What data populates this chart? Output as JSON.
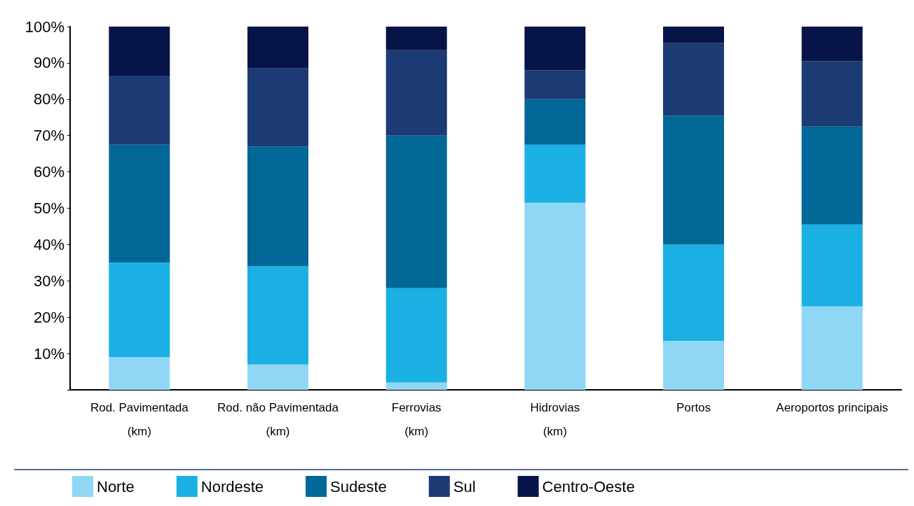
{
  "chart_data": {
    "type": "bar",
    "stacked": true,
    "categories": [
      "Rod. Pavimentada\n(km)",
      "Rod. não Pavimentada\n(km)",
      "Ferrovias\n(km)",
      "Hidrovias\n(km)",
      "Portos",
      "Aeroportos principais"
    ],
    "series": [
      {
        "name": "Norte",
        "color": "#8fd7f5",
        "values": [
          9,
          7,
          2,
          51.5,
          13.5,
          23
        ]
      },
      {
        "name": "Nordeste",
        "color": "#1ab0e3",
        "values": [
          26,
          27,
          26,
          16,
          26.5,
          22.5
        ]
      },
      {
        "name": "Sudeste",
        "color": "#006797",
        "values": [
          32.5,
          33,
          42,
          12.5,
          35.5,
          27
        ]
      },
      {
        "name": "Sul",
        "color": "#1c3a73",
        "values": [
          19,
          21.5,
          23.5,
          8,
          20,
          18
        ]
      },
      {
        "name": "Centro-Oeste",
        "color": "#061448",
        "values": [
          13.5,
          11.5,
          6.5,
          12,
          4.5,
          9.5
        ]
      }
    ],
    "ylim": [
      0,
      100
    ],
    "yticks": [
      {
        "value": 0,
        "label": null
      },
      {
        "value": 10,
        "label": "10%"
      },
      {
        "value": 20,
        "label": "20%"
      },
      {
        "value": 30,
        "label": "30%"
      },
      {
        "value": 40,
        "label": "40%"
      },
      {
        "value": 50,
        "label": "50%"
      },
      {
        "value": 60,
        "label": "60%"
      },
      {
        "value": 70,
        "label": "70%"
      },
      {
        "value": 80,
        "label": "80%"
      },
      {
        "value": 90,
        "label": "90%"
      },
      {
        "value": 100,
        "label": "100%"
      }
    ],
    "grid": false,
    "legend": "bottom"
  }
}
